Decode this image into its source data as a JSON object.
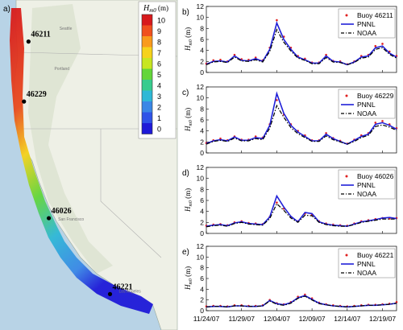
{
  "map": {
    "panel_label": "a)",
    "colorbar": {
      "title": "H",
      "title_sub": "m0",
      "title_unit": " (m)",
      "ticks": [
        "10",
        "9",
        "8",
        "7",
        "6",
        "5",
        "4",
        "3",
        "2",
        "1",
        "0"
      ],
      "colors": [
        "#d7191c",
        "#f0501e",
        "#f99a1c",
        "#f6d21b",
        "#c8e622",
        "#63d63a",
        "#38cc8e",
        "#2fb8d6",
        "#3a87e6",
        "#2f53e8",
        "#1f1ad8"
      ]
    },
    "buoys": [
      {
        "id": "46211",
        "lon": -124.24,
        "lat": 46.86
      },
      {
        "id": "46229",
        "lon": -124.55,
        "lat": 43.77
      },
      {
        "id": "46026",
        "lon": -122.84,
        "lat": 37.76
      },
      {
        "id": "46221",
        "lon": -118.63,
        "lat": 33.85
      }
    ],
    "places": [
      {
        "name": "Seattle",
        "lon": -122.33,
        "lat": 47.6
      },
      {
        "name": "Portland",
        "lon": -122.68,
        "lat": 45.52
      },
      {
        "name": "San Francisco",
        "lon": -122.42,
        "lat": 37.77
      },
      {
        "name": "Los Angeles",
        "lon": -118.24,
        "lat": 34.05
      }
    ]
  },
  "chart_data": [
    {
      "type": "line",
      "panel_label": "b)",
      "ylabel": "H",
      "ylabel_sub": "m0",
      "ylabel_unit": " (m)",
      "ylim": [
        0,
        12
      ],
      "yticks": [
        0,
        2,
        4,
        6,
        8,
        10,
        12
      ],
      "x_range": [
        "2007-11-24",
        "2007-12-21"
      ],
      "legend": [
        "Buoy 46211",
        "PNNL",
        "NOAA"
      ],
      "legend_position": "top-right",
      "series": [
        {
          "name": "Buoy 46211",
          "style": "dots",
          "color": "#e02020",
          "x": [
            "2007-11-24",
            "2007-11-25",
            "2007-11-26",
            "2007-11-27",
            "2007-11-28",
            "2007-11-29",
            "2007-11-30",
            "2007-12-01",
            "2007-12-02",
            "2007-12-03",
            "2007-12-04",
            "2007-12-05",
            "2007-12-06",
            "2007-12-07",
            "2007-12-08",
            "2007-12-09",
            "2007-12-10",
            "2007-12-11",
            "2007-12-12",
            "2007-12-13",
            "2007-12-14",
            "2007-12-15",
            "2007-12-16",
            "2007-12-17",
            "2007-12-18",
            "2007-12-19",
            "2007-12-20",
            "2007-12-21"
          ],
          "y": [
            1.6,
            2.2,
            2.3,
            2.0,
            3.2,
            2.4,
            2.3,
            2.7,
            2.2,
            4.5,
            9.5,
            6.5,
            4.5,
            3.0,
            2.5,
            1.8,
            1.8,
            3.2,
            2.1,
            2.0,
            1.5,
            2.0,
            3.0,
            3.2,
            4.8,
            5.2,
            3.8,
            3.0
          ]
        },
        {
          "name": "PNNL",
          "style": "line",
          "color": "#2020d8",
          "x": [
            "2007-11-24",
            "2007-11-25",
            "2007-11-26",
            "2007-11-27",
            "2007-11-28",
            "2007-11-29",
            "2007-11-30",
            "2007-12-01",
            "2007-12-02",
            "2007-12-03",
            "2007-12-04",
            "2007-12-05",
            "2007-12-06",
            "2007-12-07",
            "2007-12-08",
            "2007-12-09",
            "2007-12-10",
            "2007-12-11",
            "2007-12-12",
            "2007-12-13",
            "2007-12-14",
            "2007-12-15",
            "2007-12-16",
            "2007-12-17",
            "2007-12-18",
            "2007-12-19",
            "2007-12-20",
            "2007-12-21"
          ],
          "y": [
            1.5,
            2.0,
            2.1,
            1.9,
            3.0,
            2.2,
            2.1,
            2.5,
            2.0,
            4.2,
            9.0,
            6.0,
            4.2,
            2.8,
            2.3,
            1.7,
            1.7,
            3.0,
            2.0,
            1.9,
            1.4,
            1.9,
            2.8,
            3.0,
            4.5,
            4.8,
            3.5,
            2.8
          ]
        },
        {
          "name": "NOAA",
          "style": "dashdot",
          "color": "#000000",
          "x": [
            "2007-11-24",
            "2007-11-25",
            "2007-11-26",
            "2007-11-27",
            "2007-11-28",
            "2007-11-29",
            "2007-11-30",
            "2007-12-01",
            "2007-12-02",
            "2007-12-03",
            "2007-12-04",
            "2007-12-05",
            "2007-12-06",
            "2007-12-07",
            "2007-12-08",
            "2007-12-09",
            "2007-12-10",
            "2007-12-11",
            "2007-12-12",
            "2007-12-13",
            "2007-12-14",
            "2007-12-15",
            "2007-12-16",
            "2007-12-17",
            "2007-12-18",
            "2007-12-19",
            "2007-12-20",
            "2007-12-21"
          ],
          "y": [
            1.4,
            1.9,
            2.0,
            1.8,
            2.8,
            2.1,
            2.0,
            2.3,
            1.9,
            3.8,
            7.8,
            5.5,
            3.9,
            2.6,
            2.2,
            1.6,
            1.6,
            2.7,
            1.9,
            1.8,
            1.4,
            1.8,
            2.6,
            2.8,
            4.2,
            4.5,
            3.3,
            2.6
          ]
        }
      ]
    },
    {
      "type": "line",
      "panel_label": "c)",
      "ylabel": "H",
      "ylabel_sub": "m0",
      "ylabel_unit": " (m)",
      "ylim": [
        0,
        12
      ],
      "yticks": [
        0,
        2,
        4,
        6,
        8,
        10,
        12
      ],
      "x_range": [
        "2007-11-24",
        "2007-12-21"
      ],
      "legend": [
        "Buoy 46229",
        "PNNL",
        "NOAA"
      ],
      "legend_position": "top-right",
      "series": [
        {
          "name": "Buoy 46229",
          "style": "dots",
          "color": "#e02020",
          "x": [
            "2007-11-24",
            "2007-11-25",
            "2007-11-26",
            "2007-11-27",
            "2007-11-28",
            "2007-11-29",
            "2007-11-30",
            "2007-12-01",
            "2007-12-02",
            "2007-12-03",
            "2007-12-04",
            "2007-12-05",
            "2007-12-06",
            "2007-12-07",
            "2007-12-08",
            "2007-12-09",
            "2007-12-10",
            "2007-12-11",
            "2007-12-12",
            "2007-12-13",
            "2007-12-14",
            "2007-12-15",
            "2007-12-16",
            "2007-12-17",
            "2007-12-18",
            "2007-12-19",
            "2007-12-20",
            "2007-12-21"
          ],
          "y": [
            1.8,
            2.3,
            2.6,
            2.3,
            3.0,
            2.4,
            2.4,
            3.0,
            2.8,
            5.2,
            9.6,
            7.0,
            5.2,
            4.0,
            3.2,
            2.3,
            2.3,
            3.6,
            2.7,
            2.2,
            1.7,
            2.4,
            3.2,
            3.6,
            5.5,
            5.8,
            5.2,
            4.5
          ]
        },
        {
          "name": "PNNL",
          "style": "line",
          "color": "#2020d8",
          "x": [
            "2007-11-24",
            "2007-11-25",
            "2007-11-26",
            "2007-11-27",
            "2007-11-28",
            "2007-11-29",
            "2007-11-30",
            "2007-12-01",
            "2007-12-02",
            "2007-12-03",
            "2007-12-04",
            "2007-12-05",
            "2007-12-06",
            "2007-12-07",
            "2007-12-08",
            "2007-12-09",
            "2007-12-10",
            "2007-12-11",
            "2007-12-12",
            "2007-12-13",
            "2007-12-14",
            "2007-12-15",
            "2007-12-16",
            "2007-12-17",
            "2007-12-18",
            "2007-12-19",
            "2007-12-20",
            "2007-12-21"
          ],
          "y": [
            1.7,
            2.2,
            2.4,
            2.2,
            2.9,
            2.3,
            2.3,
            2.8,
            2.6,
            5.0,
            10.8,
            7.2,
            5.0,
            3.8,
            3.0,
            2.2,
            2.2,
            3.4,
            2.6,
            2.1,
            1.6,
            2.3,
            3.0,
            3.4,
            5.2,
            5.5,
            5.0,
            4.3
          ]
        },
        {
          "name": "NOAA",
          "style": "dashdot",
          "color": "#000000",
          "x": [
            "2007-11-24",
            "2007-11-25",
            "2007-11-26",
            "2007-11-27",
            "2007-11-28",
            "2007-11-29",
            "2007-11-30",
            "2007-12-01",
            "2007-12-02",
            "2007-12-03",
            "2007-12-04",
            "2007-12-05",
            "2007-12-06",
            "2007-12-07",
            "2007-12-08",
            "2007-12-09",
            "2007-12-10",
            "2007-12-11",
            "2007-12-12",
            "2007-12-13",
            "2007-12-14",
            "2007-12-15",
            "2007-12-16",
            "2007-12-17",
            "2007-12-18",
            "2007-12-19",
            "2007-12-20",
            "2007-12-21"
          ],
          "y": [
            1.6,
            2.1,
            2.3,
            2.1,
            2.7,
            2.2,
            2.2,
            2.6,
            2.4,
            4.5,
            8.6,
            6.5,
            4.6,
            3.5,
            2.8,
            2.1,
            2.1,
            3.1,
            2.4,
            2.0,
            1.6,
            2.1,
            2.8,
            3.2,
            4.8,
            5.1,
            4.7,
            4.1
          ]
        }
      ]
    },
    {
      "type": "line",
      "panel_label": "d)",
      "ylabel": "H",
      "ylabel_sub": "m0",
      "ylabel_unit": " (m)",
      "ylim": [
        0,
        12
      ],
      "yticks": [
        0,
        2,
        4,
        6,
        8,
        10,
        12
      ],
      "x_range": [
        "2007-11-24",
        "2007-12-21"
      ],
      "legend": [
        "Buoy 46026",
        "PNNL",
        "NOAA"
      ],
      "legend_position": "top-right",
      "series": [
        {
          "name": "Buoy 46026",
          "style": "dots",
          "color": "#e02020",
          "x": [
            "2007-11-24",
            "2007-11-25",
            "2007-11-26",
            "2007-11-27",
            "2007-11-28",
            "2007-11-29",
            "2007-11-30",
            "2007-12-01",
            "2007-12-02",
            "2007-12-03",
            "2007-12-04",
            "2007-12-05",
            "2007-12-06",
            "2007-12-07",
            "2007-12-08",
            "2007-12-09",
            "2007-12-10",
            "2007-12-11",
            "2007-12-12",
            "2007-12-13",
            "2007-12-14",
            "2007-12-15",
            "2007-12-16",
            "2007-12-17",
            "2007-12-18",
            "2007-12-19",
            "2007-12-20",
            "2007-12-21"
          ],
          "y": [
            1.4,
            1.6,
            1.7,
            1.5,
            2.0,
            2.2,
            1.9,
            1.8,
            1.7,
            3.0,
            5.6,
            4.5,
            3.0,
            2.2,
            3.6,
            3.4,
            2.2,
            1.8,
            1.6,
            1.5,
            1.4,
            1.8,
            2.2,
            2.4,
            2.6,
            2.8,
            2.7,
            2.8
          ]
        },
        {
          "name": "PNNL",
          "style": "line",
          "color": "#2020d8",
          "x": [
            "2007-11-24",
            "2007-11-25",
            "2007-11-26",
            "2007-11-27",
            "2007-11-28",
            "2007-11-29",
            "2007-11-30",
            "2007-12-01",
            "2007-12-02",
            "2007-12-03",
            "2007-12-04",
            "2007-12-05",
            "2007-12-06",
            "2007-12-07",
            "2007-12-08",
            "2007-12-09",
            "2007-12-10",
            "2007-12-11",
            "2007-12-12",
            "2007-12-13",
            "2007-12-14",
            "2007-12-15",
            "2007-12-16",
            "2007-12-17",
            "2007-12-18",
            "2007-12-19",
            "2007-12-20",
            "2007-12-21"
          ],
          "y": [
            1.3,
            1.5,
            1.6,
            1.4,
            1.9,
            2.1,
            1.8,
            1.7,
            1.6,
            3.0,
            6.8,
            4.8,
            3.1,
            2.1,
            3.8,
            3.6,
            2.1,
            1.7,
            1.5,
            1.4,
            1.3,
            1.7,
            2.1,
            2.3,
            2.5,
            2.8,
            2.9,
            2.7
          ]
        },
        {
          "name": "NOAA",
          "style": "dashdot",
          "color": "#000000",
          "x": [
            "2007-11-24",
            "2007-11-25",
            "2007-11-26",
            "2007-11-27",
            "2007-11-28",
            "2007-11-29",
            "2007-11-30",
            "2007-12-01",
            "2007-12-02",
            "2007-12-03",
            "2007-12-04",
            "2007-12-05",
            "2007-12-06",
            "2007-12-07",
            "2007-12-08",
            "2007-12-09",
            "2007-12-10",
            "2007-12-11",
            "2007-12-12",
            "2007-12-13",
            "2007-12-14",
            "2007-12-15",
            "2007-12-16",
            "2007-12-17",
            "2007-12-18",
            "2007-12-19",
            "2007-12-20",
            "2007-12-21"
          ],
          "y": [
            1.2,
            1.4,
            1.5,
            1.3,
            1.8,
            2.0,
            1.7,
            1.6,
            1.5,
            2.7,
            5.4,
            4.2,
            2.8,
            2.0,
            3.3,
            3.2,
            2.0,
            1.6,
            1.4,
            1.3,
            1.3,
            1.6,
            2.0,
            2.2,
            2.4,
            2.6,
            2.6,
            2.6
          ]
        }
      ]
    },
    {
      "type": "line",
      "panel_label": "e)",
      "ylabel": "H",
      "ylabel_sub": "m0",
      "ylabel_unit": " (m)",
      "ylim": [
        0,
        12
      ],
      "yticks": [
        0,
        2,
        4,
        6,
        8,
        10,
        12
      ],
      "x_range": [
        "2007-11-24",
        "2007-12-21"
      ],
      "xticks": [
        "11/24/07",
        "11/29/07",
        "12/04/07",
        "12/09/07",
        "12/14/07",
        "12/19/07"
      ],
      "legend": [
        "Buoy 46221",
        "PNNL",
        "NOAA"
      ],
      "legend_position": "top-right",
      "series": [
        {
          "name": "Buoy 46221",
          "style": "dots",
          "color": "#e02020",
          "x": [
            "2007-11-24",
            "2007-11-25",
            "2007-11-26",
            "2007-11-27",
            "2007-11-28",
            "2007-11-29",
            "2007-11-30",
            "2007-12-01",
            "2007-12-02",
            "2007-12-03",
            "2007-12-04",
            "2007-12-05",
            "2007-12-06",
            "2007-12-07",
            "2007-12-08",
            "2007-12-09",
            "2007-12-10",
            "2007-12-11",
            "2007-12-12",
            "2007-12-13",
            "2007-12-14",
            "2007-12-15",
            "2007-12-16",
            "2007-12-17",
            "2007-12-18",
            "2007-12-19",
            "2007-12-20",
            "2007-12-21"
          ],
          "y": [
            0.8,
            0.9,
            0.9,
            0.8,
            1.0,
            1.0,
            0.9,
            0.9,
            1.0,
            2.0,
            1.4,
            1.2,
            1.6,
            2.6,
            3.0,
            2.3,
            1.5,
            1.2,
            1.0,
            0.9,
            0.8,
            0.9,
            1.0,
            1.1,
            1.1,
            1.2,
            1.3,
            1.6
          ]
        },
        {
          "name": "PNNL",
          "style": "line",
          "color": "#2020d8",
          "x": [
            "2007-11-24",
            "2007-11-25",
            "2007-11-26",
            "2007-11-27",
            "2007-11-28",
            "2007-11-29",
            "2007-11-30",
            "2007-12-01",
            "2007-12-02",
            "2007-12-03",
            "2007-12-04",
            "2007-12-05",
            "2007-12-06",
            "2007-12-07",
            "2007-12-08",
            "2007-12-09",
            "2007-12-10",
            "2007-12-11",
            "2007-12-12",
            "2007-12-13",
            "2007-12-14",
            "2007-12-15",
            "2007-12-16",
            "2007-12-17",
            "2007-12-18",
            "2007-12-19",
            "2007-12-20",
            "2007-12-21"
          ],
          "y": [
            0.7,
            0.8,
            0.8,
            0.7,
            0.9,
            0.9,
            0.8,
            0.8,
            0.9,
            1.9,
            1.3,
            1.1,
            1.5,
            2.4,
            2.8,
            2.1,
            1.4,
            1.1,
            0.9,
            0.8,
            0.7,
            0.8,
            0.9,
            1.0,
            1.0,
            1.1,
            1.2,
            1.4
          ]
        },
        {
          "name": "NOAA",
          "style": "dashdot",
          "color": "#000000",
          "x": [
            "2007-11-24",
            "2007-11-25",
            "2007-11-26",
            "2007-11-27",
            "2007-11-28",
            "2007-11-29",
            "2007-11-30",
            "2007-12-01",
            "2007-12-02",
            "2007-12-03",
            "2007-12-04",
            "2007-12-05",
            "2007-12-06",
            "2007-12-07",
            "2007-12-08",
            "2007-12-09",
            "2007-12-10",
            "2007-12-11",
            "2007-12-12",
            "2007-12-13",
            "2007-12-14",
            "2007-12-15",
            "2007-12-16",
            "2007-12-17",
            "2007-12-18",
            "2007-12-19",
            "2007-12-20",
            "2007-12-21"
          ],
          "y": [
            0.7,
            0.8,
            0.8,
            0.7,
            0.9,
            0.9,
            0.8,
            0.8,
            0.9,
            1.8,
            1.2,
            1.0,
            1.4,
            2.3,
            2.7,
            2.0,
            1.3,
            1.1,
            0.9,
            0.8,
            0.7,
            0.8,
            0.9,
            1.0,
            1.0,
            1.1,
            1.2,
            1.4
          ]
        }
      ]
    }
  ]
}
